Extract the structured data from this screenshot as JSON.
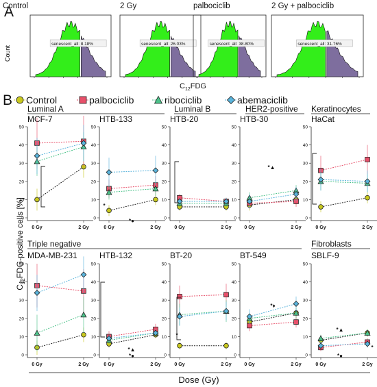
{
  "panel_labels": {
    "a": "A",
    "b": "B"
  },
  "panel_a": {
    "histograms": [
      {
        "title": "Control",
        "gate_label": "senescent_all: 8.18%",
        "ylabel": "Count"
      },
      {
        "title": "2 Gy",
        "gate_label": "senescent_all: 26.03%"
      },
      {
        "title": "palbociclib",
        "gate_label": "senescent_all: 38.80%"
      },
      {
        "title": "2 Gy + palbociclib",
        "gate_label": "senescent_all: 31.76%"
      }
    ],
    "xlabel": "C",
    "xlabel_sub": "12",
    "xlabel_tail": "FDG",
    "colors": {
      "green": "#33ee1a",
      "purple": "#7e6e9e",
      "edge": "#111111"
    }
  },
  "panel_b": {
    "legend": [
      {
        "label": "Control",
        "color": "#c8c81e",
        "marker": "circle"
      },
      {
        "label": "palbociclib",
        "color": "#e8506a",
        "marker": "square"
      },
      {
        "label": "ribociclib",
        "color": "#4cc28a",
        "marker": "triangle"
      },
      {
        "label": "abemaciclib",
        "color": "#5ab4dc",
        "marker": "diamond"
      }
    ],
    "ylabel_pre": "C",
    "ylabel_sub": "12",
    "ylabel_post": "FDG-positive cells  [%]",
    "xlabel": "Dose (Gy)",
    "groups": [
      {
        "label": "Luminal A"
      },
      {
        "label": "Luminal B"
      },
      {
        "label": "HER2-positive"
      },
      {
        "label": "Keratinocytes"
      },
      {
        "label": "Triple negative"
      },
      {
        "label": "Fibroblasts"
      }
    ],
    "y_ticks": [
      "0",
      "10",
      "20",
      "30",
      "40",
      "50"
    ],
    "x_ticks": [
      "0 Gy",
      "2 Gy"
    ],
    "significance": {
      "star": "*",
      "star_circle": "*●",
      "star_triangle": "*▲",
      "star_diamond": "*♦"
    }
  },
  "chart_data": [
    {
      "type": "line",
      "title": "MCF-7",
      "categories": [
        "0 Gy",
        "2 Gy"
      ],
      "ylim": [
        0,
        50
      ],
      "series": [
        {
          "name": "Control",
          "values": [
            10,
            28
          ]
        },
        {
          "name": "palbociclib",
          "values": [
            41,
            42
          ]
        },
        {
          "name": "ribociclib",
          "values": [
            31,
            39
          ]
        },
        {
          "name": "abemaciclib",
          "values": [
            34,
            41
          ]
        }
      ]
    },
    {
      "type": "line",
      "title": "HTB-133",
      "categories": [
        "0 Gy",
        "2 Gy"
      ],
      "ylim": [
        0,
        50
      ],
      "series": [
        {
          "name": "Control",
          "values": [
            4,
            10
          ]
        },
        {
          "name": "palbociclib",
          "values": [
            16,
            18
          ]
        },
        {
          "name": "ribociclib",
          "values": [
            14,
            16
          ]
        },
        {
          "name": "abemaciclib",
          "values": [
            25,
            26
          ]
        }
      ]
    },
    {
      "type": "line",
      "title": "HTB-20",
      "categories": [
        "0 Gy",
        "2 Gy"
      ],
      "ylim": [
        0,
        50
      ],
      "series": [
        {
          "name": "Control",
          "values": [
            6,
            6
          ]
        },
        {
          "name": "palbociclib",
          "values": [
            11,
            9
          ]
        },
        {
          "name": "ribociclib",
          "values": [
            8,
            8
          ]
        },
        {
          "name": "abemaciclib",
          "values": [
            9,
            9
          ]
        }
      ]
    },
    {
      "type": "line",
      "title": "HTB-30",
      "categories": [
        "0 Gy",
        "2 Gy"
      ],
      "ylim": [
        0,
        50
      ],
      "series": [
        {
          "name": "Control",
          "values": [
            7,
            10
          ]
        },
        {
          "name": "palbociclib",
          "values": [
            8,
            9
          ]
        },
        {
          "name": "ribociclib",
          "values": [
            11,
            15
          ]
        },
        {
          "name": "abemaciclib",
          "values": [
            9,
            13
          ]
        }
      ]
    },
    {
      "type": "line",
      "title": "HaCat",
      "categories": [
        "0 Gy",
        "2 Gy"
      ],
      "ylim": [
        0,
        50
      ],
      "series": [
        {
          "name": "Control",
          "values": [
            6,
            11
          ]
        },
        {
          "name": "palbociclib",
          "values": [
            26,
            32
          ]
        },
        {
          "name": "ribociclib",
          "values": [
            20,
            19
          ]
        },
        {
          "name": "abemaciclib",
          "values": [
            21,
            20
          ]
        }
      ]
    },
    {
      "type": "line",
      "title": "MDA-MB-231",
      "categories": [
        "0 Gy",
        "2 Gy"
      ],
      "ylim": [
        0,
        50
      ],
      "series": [
        {
          "name": "Control",
          "values": [
            4,
            11
          ]
        },
        {
          "name": "palbociclib",
          "values": [
            38,
            35
          ]
        },
        {
          "name": "ribociclib",
          "values": [
            12,
            22
          ]
        },
        {
          "name": "abemaciclib",
          "values": [
            34,
            44
          ]
        }
      ]
    },
    {
      "type": "line",
      "title": "HTB-132",
      "categories": [
        "0 Gy",
        "2 Gy"
      ],
      "ylim": [
        0,
        50
      ],
      "series": [
        {
          "name": "Control",
          "values": [
            6,
            11
          ]
        },
        {
          "name": "palbociclib",
          "values": [
            10,
            14
          ]
        },
        {
          "name": "ribociclib",
          "values": [
            8,
            12
          ]
        },
        {
          "name": "abemaciclib",
          "values": [
            9,
            12
          ]
        }
      ]
    },
    {
      "type": "line",
      "title": "BT-20",
      "categories": [
        "0 Gy",
        "2 Gy"
      ],
      "ylim": [
        0,
        50
      ],
      "series": [
        {
          "name": "Control",
          "values": [
            5,
            5
          ]
        },
        {
          "name": "palbociclib",
          "values": [
            32,
            33
          ]
        },
        {
          "name": "ribociclib",
          "values": [
            22,
            24
          ]
        },
        {
          "name": "abemaciclib",
          "values": [
            21,
            24
          ]
        }
      ]
    },
    {
      "type": "line",
      "title": "BT-549",
      "categories": [
        "0 Gy",
        "2 Gy"
      ],
      "ylim": [
        0,
        50
      ],
      "series": [
        {
          "name": "Control",
          "values": [
            18,
            23
          ]
        },
        {
          "name": "palbociclib",
          "values": [
            16,
            18
          ]
        },
        {
          "name": "ribociclib",
          "values": [
            20,
            23
          ]
        },
        {
          "name": "abemaciclib",
          "values": [
            21,
            28
          ]
        }
      ]
    },
    {
      "type": "line",
      "title": "SBLF-9",
      "categories": [
        "0 Gy",
        "2 Gy"
      ],
      "ylim": [
        0,
        50
      ],
      "series": [
        {
          "name": "Control",
          "values": [
            8,
            12
          ]
        },
        {
          "name": "palbociclib",
          "values": [
            4,
            7
          ]
        },
        {
          "name": "ribociclib",
          "values": [
            9,
            12
          ]
        },
        {
          "name": "abemaciclib",
          "values": [
            5,
            6
          ]
        }
      ]
    }
  ]
}
